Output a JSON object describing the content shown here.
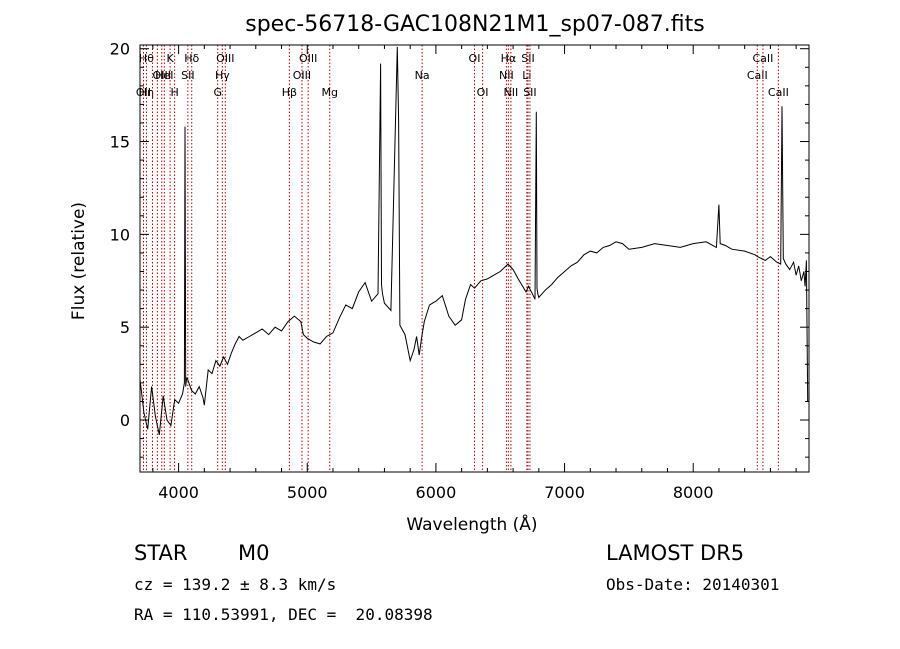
{
  "chart_data": {
    "type": "line",
    "title": "spec-56718-GAC108N21M1_sp07-087.fits",
    "xlabel": "Wavelength (Å)",
    "ylabel": "Flux (relative)",
    "xlim": [
      3700,
      8900
    ],
    "ylim": [
      -2.8,
      20.2
    ],
    "xticks": [
      4000,
      5000,
      6000,
      7000,
      8000
    ],
    "yticks": [
      0,
      5,
      10,
      15,
      20
    ],
    "grid": false,
    "series": [
      {
        "x": [
          3700,
          3730,
          3760,
          3790,
          3820,
          3850,
          3880,
          3910,
          3940,
          3970,
          4000,
          4030,
          4045,
          4050,
          4055,
          4060,
          4065,
          4070,
          4100,
          4130,
          4160,
          4190,
          4200,
          4230,
          4260,
          4290,
          4320,
          4350,
          4380,
          4410,
          4440,
          4470,
          4500,
          4550,
          4600,
          4650,
          4700,
          4750,
          4800,
          4850,
          4900,
          4950,
          4970,
          5000,
          5050,
          5100,
          5150,
          5200,
          5250,
          5300,
          5350,
          5400,
          5450,
          5500,
          5550,
          5570,
          5577,
          5585,
          5600,
          5650,
          5690,
          5700,
          5710,
          5720,
          5760,
          5800,
          5830,
          5850,
          5870,
          5890,
          5910,
          5950,
          6000,
          6050,
          6100,
          6150,
          6200,
          6230,
          6270,
          6300,
          6350,
          6400,
          6450,
          6500,
          6560,
          6600,
          6640,
          6700,
          6720,
          6750,
          6770,
          6780,
          6786,
          6792,
          6800,
          6850,
          6900,
          6950,
          7000,
          7050,
          7100,
          7150,
          7200,
          7250,
          7300,
          7350,
          7400,
          7450,
          7500,
          7600,
          7700,
          7800,
          7900,
          8000,
          8100,
          8180,
          8200,
          8210,
          8250,
          8300,
          8400,
          8480,
          8500,
          8560,
          8600,
          8650,
          8680,
          8690,
          8700,
          8720,
          8750,
          8780,
          8800,
          8820,
          8840,
          8860,
          8870,
          8880,
          8890,
          8900
        ],
        "values": [
          2.2,
          0.4,
          -0.5,
          1.8,
          0.2,
          -0.8,
          1.3,
          0.0,
          -0.3,
          1.1,
          0.9,
          1.4,
          2.0,
          15.8,
          1.8,
          2.1,
          2.3,
          2.2,
          1.6,
          1.4,
          1.8,
          1.2,
          0.8,
          2.7,
          2.5,
          3.2,
          2.9,
          3.4,
          3.0,
          3.6,
          4.1,
          4.5,
          4.3,
          4.5,
          4.7,
          4.9,
          4.6,
          5.0,
          4.8,
          5.3,
          5.6,
          5.3,
          4.6,
          4.4,
          4.2,
          4.1,
          4.5,
          4.7,
          5.5,
          6.2,
          6.0,
          6.9,
          7.4,
          6.4,
          6.8,
          19.2,
          7.3,
          6.8,
          6.3,
          5.9,
          17.2,
          20.1,
          16.2,
          5.1,
          4.6,
          3.2,
          3.8,
          4.5,
          3.5,
          4.5,
          5.3,
          6.2,
          6.4,
          6.7,
          5.6,
          5.1,
          5.4,
          6.5,
          7.3,
          7.1,
          7.5,
          7.6,
          7.8,
          8.0,
          8.4,
          8.1,
          7.6,
          6.9,
          7.2,
          6.8,
          6.5,
          16.6,
          7.1,
          6.8,
          6.6,
          7.0,
          7.3,
          7.7,
          8.0,
          8.3,
          8.5,
          8.9,
          9.1,
          9.0,
          9.3,
          9.4,
          9.6,
          9.5,
          9.2,
          9.3,
          9.5,
          9.4,
          9.3,
          9.5,
          9.6,
          9.3,
          11.6,
          9.5,
          9.4,
          9.2,
          9.1,
          8.9,
          8.8,
          8.6,
          8.8,
          8.5,
          8.4,
          16.9,
          8.7,
          8.4,
          8.1,
          8.5,
          7.8,
          8.3,
          7.5,
          8.0,
          7.2,
          8.6,
          1.0,
          1.0
        ]
      }
    ],
    "lines": [
      {
        "x": 3727,
        "labels": [
          "OII"
        ],
        "row": 2
      },
      {
        "x": 3750,
        "labels": [
          "Hθ",
          "Hη"
        ],
        "rows": [
          0,
          2
        ]
      },
      {
        "x": 3797,
        "labels": [],
        "row": 0
      },
      {
        "x": 3835,
        "labels": [],
        "row": 0
      },
      {
        "x": 3869,
        "labels": [
          "OIII"
        ],
        "row": 1
      },
      {
        "x": 3889,
        "labels": [
          "HeI"
        ],
        "row": 1
      },
      {
        "x": 3934,
        "labels": [
          "K"
        ],
        "row": 0
      },
      {
        "x": 3969,
        "labels": [
          "H"
        ],
        "row": 2
      },
      {
        "x": 4072,
        "labels": [
          "SII"
        ],
        "row": 1
      },
      {
        "x": 4102,
        "labels": [
          "Hδ"
        ],
        "row": 0
      },
      {
        "x": 4304,
        "labels": [
          "G"
        ],
        "row": 2
      },
      {
        "x": 4340,
        "labels": [
          "Hγ"
        ],
        "row": 1
      },
      {
        "x": 4363,
        "labels": [
          "OIII"
        ],
        "row": 0
      },
      {
        "x": 4861,
        "labels": [
          "Hβ"
        ],
        "row": 2
      },
      {
        "x": 4959,
        "labels": [
          "OIII"
        ],
        "row": 1
      },
      {
        "x": 5007,
        "labels": [
          "OIII"
        ],
        "row": 0
      },
      {
        "x": 5175,
        "labels": [
          "Mg"
        ],
        "row": 2
      },
      {
        "x": 5893,
        "labels": [
          "Na"
        ],
        "row": 1
      },
      {
        "x": 6300,
        "labels": [
          "OI"
        ],
        "row": 0
      },
      {
        "x": 6363,
        "labels": [
          "OI"
        ],
        "row": 2
      },
      {
        "x": 6548,
        "labels": [
          "NII"
        ],
        "row": 1
      },
      {
        "x": 6563,
        "labels": [
          "Hα"
        ],
        "row": 0
      },
      {
        "x": 6583,
        "labels": [
          "NII"
        ],
        "row": 2
      },
      {
        "x": 6707,
        "labels": [
          "Li"
        ],
        "row": 1
      },
      {
        "x": 6716,
        "labels": [
          "SII"
        ],
        "row": 0
      },
      {
        "x": 6731,
        "labels": [
          "SII"
        ],
        "row": 2
      },
      {
        "x": 8498,
        "labels": [
          "CaII"
        ],
        "row": 1
      },
      {
        "x": 8542,
        "labels": [
          "CaII"
        ],
        "row": 0
      },
      {
        "x": 8662,
        "labels": [
          "CaII"
        ],
        "row": 2
      }
    ]
  },
  "info": {
    "object_class": "STAR",
    "subclass": "M0",
    "survey": "LAMOST DR5",
    "redshift": "cz = 139.2 ± 8.3 km/s",
    "obs_date": "Obs-Date: 20140301",
    "coords": "RA = 110.53991, DEC =  20.08398"
  }
}
